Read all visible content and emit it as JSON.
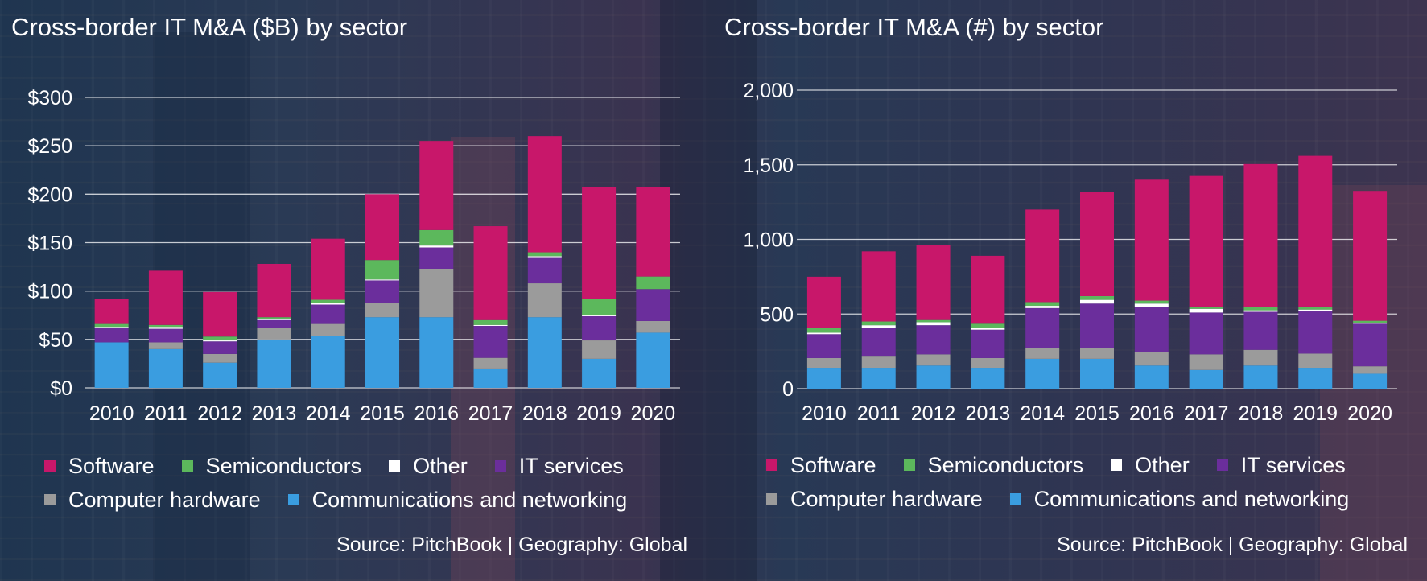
{
  "chart_data": [
    {
      "type": "bar",
      "stacked": true,
      "title": "Cross-border IT M&A ($B) by sector",
      "xlabel": "",
      "ylabel": "",
      "categories": [
        "2010",
        "2011",
        "2012",
        "2013",
        "2014",
        "2015",
        "2016",
        "2017",
        "2018",
        "2019",
        "2020"
      ],
      "ylim": [
        0,
        300
      ],
      "yticks": [
        0,
        50,
        100,
        150,
        200,
        250,
        300
      ],
      "ytick_labels": [
        "$0",
        "$50",
        "$100",
        "$150",
        "$200",
        "$250",
        "$300"
      ],
      "grid": true,
      "legend_position": "bottom",
      "series": [
        {
          "name": "Communications and networking",
          "color": "#3a9de0",
          "values": [
            47,
            40,
            26,
            50,
            54,
            73,
            73,
            20,
            73,
            30,
            57
          ]
        },
        {
          "name": "Computer hardware",
          "color": "#9b9b9b",
          "values": [
            0,
            7,
            9,
            12,
            12,
            15,
            50,
            11,
            35,
            19,
            12
          ]
        },
        {
          "name": "IT services",
          "color": "#6b2e9c",
          "values": [
            15,
            14,
            13,
            8,
            20,
            23,
            22,
            33,
            27,
            25,
            33
          ]
        },
        {
          "name": "Other",
          "color": "#ffffff",
          "values": [
            1,
            2,
            1,
            1,
            2,
            1,
            2,
            1,
            1,
            1,
            0
          ]
        },
        {
          "name": "Semiconductors",
          "color": "#5cb85c",
          "values": [
            3,
            2,
            4,
            2,
            3,
            20,
            16,
            5,
            4,
            17,
            13
          ]
        },
        {
          "name": "Software",
          "color": "#c8176a",
          "values": [
            26,
            56,
            46,
            55,
            63,
            68,
            92,
            97,
            120,
            115,
            92
          ]
        }
      ],
      "legend_order": [
        "Software",
        "Semiconductors",
        "Other",
        "IT services",
        "Computer hardware",
        "Communications and networking"
      ],
      "source": "Source: PitchBook | Geography: Global"
    },
    {
      "type": "bar",
      "stacked": true,
      "title": "Cross-border IT M&A (#) by sector",
      "xlabel": "",
      "ylabel": "",
      "categories": [
        "2010",
        "2011",
        "2012",
        "2013",
        "2014",
        "2015",
        "2016",
        "2017",
        "2018",
        "2019",
        "2020"
      ],
      "ylim": [
        0,
        2000
      ],
      "yticks": [
        0,
        500,
        1000,
        1500,
        2000
      ],
      "ytick_labels": [
        "0",
        "500",
        "1,000",
        "1,500",
        "2,000"
      ],
      "grid": true,
      "legend_position": "bottom",
      "series": [
        {
          "name": "Communications and networking",
          "color": "#3a9de0",
          "values": [
            140,
            140,
            155,
            140,
            200,
            200,
            155,
            125,
            155,
            140,
            100
          ]
        },
        {
          "name": "Computer hardware",
          "color": "#9b9b9b",
          "values": [
            65,
            75,
            75,
            65,
            70,
            70,
            90,
            105,
            105,
            95,
            50
          ]
        },
        {
          "name": "IT services",
          "color": "#6b2e9c",
          "values": [
            160,
            190,
            195,
            190,
            270,
            300,
            300,
            280,
            255,
            285,
            285
          ]
        },
        {
          "name": "Other",
          "color": "#ffffff",
          "values": [
            10,
            20,
            20,
            10,
            15,
            25,
            25,
            25,
            10,
            10,
            5
          ]
        },
        {
          "name": "Semiconductors",
          "color": "#5cb85c",
          "values": [
            30,
            25,
            15,
            30,
            25,
            25,
            20,
            15,
            20,
            20,
            15
          ]
        },
        {
          "name": "Software",
          "color": "#c8176a",
          "values": [
            345,
            470,
            505,
            455,
            620,
            700,
            810,
            875,
            960,
            1010,
            870
          ]
        }
      ],
      "legend_order": [
        "Software",
        "Semiconductors",
        "Other",
        "IT services",
        "Computer hardware",
        "Communications and networking"
      ],
      "source": "Source: PitchBook | Geography: Global"
    }
  ]
}
